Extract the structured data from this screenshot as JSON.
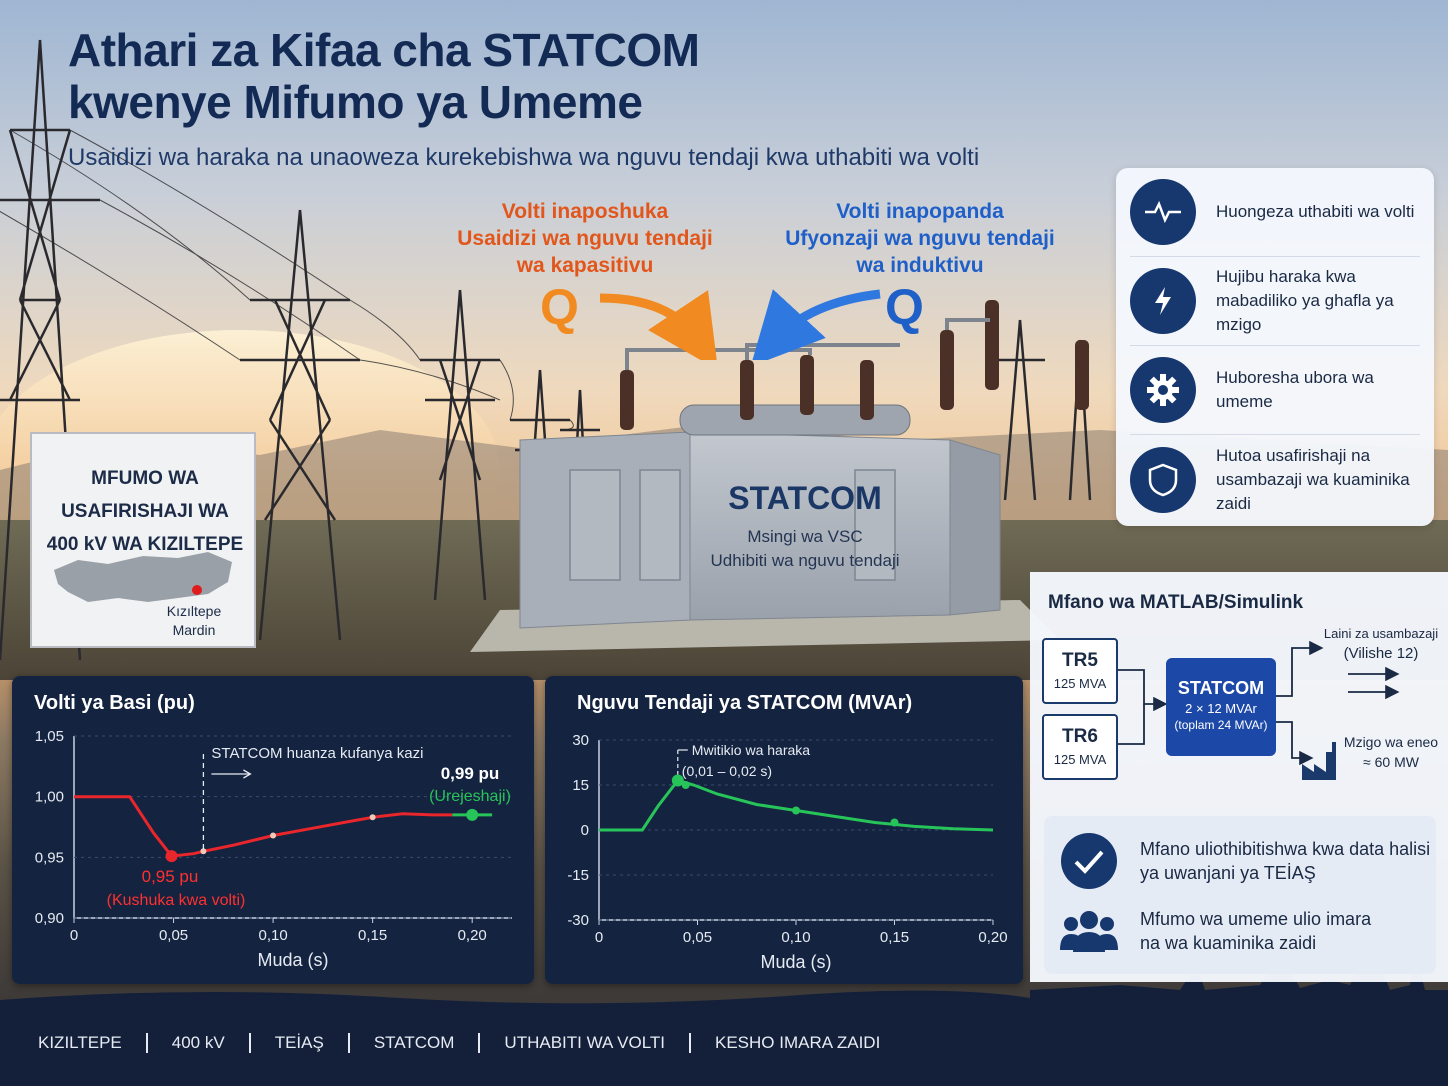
{
  "header": {
    "title_line1": "Athari za Kifaa cha STATCOM",
    "title_line2": "kwenye Mifumo ya Umeme",
    "subtitle": "Usaidizi wa haraka na unaoweza kurekebishwa wa nguvu tendaji kwa uthabiti wa volti"
  },
  "callouts": {
    "capacitive": {
      "line1": "Volti inaposhuka",
      "line2": "Usaidizi wa nguvu tendaji",
      "line3": "wa kapasitivu",
      "q": "Q",
      "color": "#e2561b"
    },
    "inductive": {
      "line1": "Volti inapopanda",
      "line2": "Ufyonzaji wa nguvu tendaji",
      "line3": "wa induktivu",
      "q": "Q",
      "color": "#1f5fc8"
    }
  },
  "equipment": {
    "name": "STATCOM",
    "line1": "Msingi wa VSC",
    "line2": "Udhibiti wa nguvu tendaji"
  },
  "sign": {
    "line1": "MFUMO WA USAFIRISHAJI WA",
    "line2": "400 kV WA KIZILTEPE",
    "place1": "Kızıltepe",
    "place2": "Mardin"
  },
  "benefits": [
    {
      "icon": "waveform-icon",
      "text": "Huongeza uthabiti wa volti"
    },
    {
      "icon": "lightning-icon",
      "line1": "Hujibu haraka kwa",
      "line2": "mabadiliko ya ghafla ya mzigo"
    },
    {
      "icon": "gear-icon",
      "text": "Huboresha ubora wa umeme"
    },
    {
      "icon": "shield-icon",
      "line1": "Hutoa usafirishaji na",
      "line2": "usambazaji wa kuaminika zaidi"
    }
  ],
  "matlab": {
    "title": "Mfano wa MATLAB/Simulink",
    "tr5": {
      "name": "TR5",
      "rating": "125 MVA"
    },
    "tr6": {
      "name": "TR6",
      "rating": "125 MVA"
    },
    "statcom": {
      "name": "STATCOM",
      "rating": "2 × 12 MVAr",
      "total": "(toplam 24 MVAr)"
    },
    "lines_label1": "Laini za usambazaji",
    "lines_label2": "(Vilishe 12)",
    "load_label1": "Mzigo wa eneo",
    "load_label2": "≈ 60 MW",
    "validation1_line1": "Mfano uliothibitishwa kwa data halisi",
    "validation1_line2": "ya uwanjani ya TEİAŞ",
    "validation2_line1": "Mfumo wa umeme ulio imara",
    "validation2_line2": "na wa kuaminika zaidi"
  },
  "chart_data": [
    {
      "type": "line",
      "title": "Volti ya Basi (pu)",
      "xlabel": "Muda (s)",
      "ylabel": "",
      "xlim": [
        0,
        0.22
      ],
      "ylim": [
        0.9,
        1.05
      ],
      "xticks": [
        "0",
        "0,05",
        "0,10",
        "0,15",
        "0,20"
      ],
      "yticks": [
        "1,05",
        "1,00",
        "0,95",
        "0,90"
      ],
      "series": [
        {
          "color": "#e8262b",
          "x": [
            0,
            0.02,
            0.028,
            0.04,
            0.049,
            0.06,
            0.065,
            0.08,
            0.1,
            0.12,
            0.14,
            0.15,
            0.165,
            0.18,
            0.19
          ],
          "y": [
            1.0,
            1.0,
            1.0,
            0.97,
            0.951,
            0.953,
            0.955,
            0.96,
            0.968,
            0.974,
            0.98,
            0.983,
            0.986,
            0.985,
            0.985
          ]
        },
        {
          "color": "#27c45a",
          "x": [
            0.19,
            0.2,
            0.21
          ],
          "y": [
            0.985,
            0.985,
            0.985
          ]
        }
      ],
      "annotations": {
        "start": "STATCOM huanza kufanya kazi",
        "min_value": "0,95 pu",
        "min_label": "(Kushuka kwa volti)",
        "rec_value": "0,99 pu",
        "rec_label": "(Urejeshaji)"
      }
    },
    {
      "type": "line",
      "title": "Nguvu Tendaji ya STATCOM (MVAr)",
      "xlabel": "Muda (s)",
      "ylabel": "",
      "xlim": [
        0,
        0.2
      ],
      "ylim": [
        -30,
        30
      ],
      "xticks": [
        "0",
        "0,05",
        "0,10",
        "0,15",
        "0,20"
      ],
      "yticks": [
        "30",
        "15",
        "0",
        "-15",
        "-30"
      ],
      "series": [
        {
          "color": "#27c45a",
          "x": [
            0,
            0.022,
            0.03,
            0.04,
            0.048,
            0.06,
            0.08,
            0.1,
            0.12,
            0.14,
            0.16,
            0.18,
            0.2
          ],
          "y": [
            0,
            0,
            8,
            16.5,
            15,
            12,
            8.5,
            6.5,
            4.5,
            2.5,
            1.2,
            0.4,
            0
          ]
        }
      ],
      "annotations": {
        "peak_label": "Mwitikio wa haraka",
        "peak_range": "(0,01 – 0,02 s)"
      }
    }
  ],
  "footer": [
    "KIZILTEPE",
    "400 kV",
    "TEİAŞ",
    "STATCOM",
    "UTHABITI WA VOLTI",
    "KESHO IMARA ZAIDI"
  ]
}
